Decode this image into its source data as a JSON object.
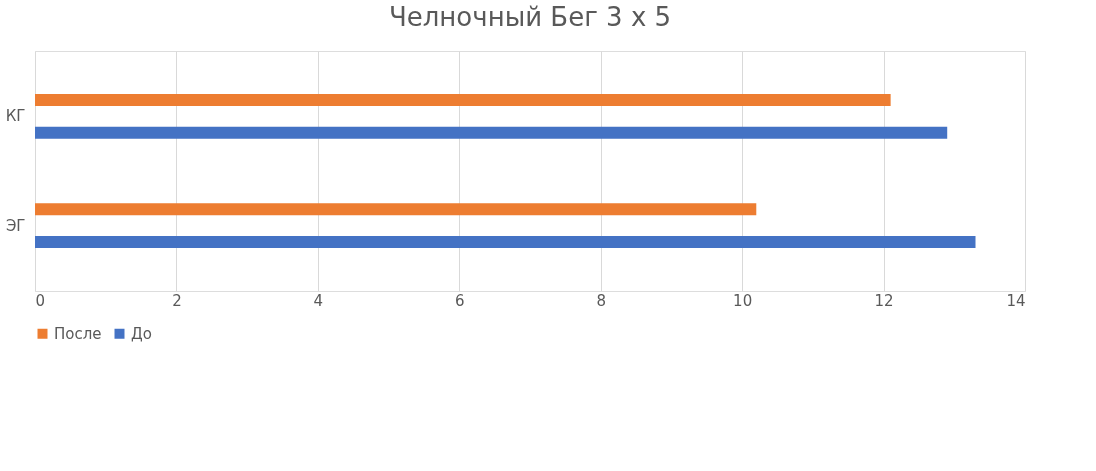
{
  "chart_data": {
    "type": "bar",
    "orientation": "horizontal",
    "title": "Челночный Бег 3 х 5",
    "categories": [
      "КГ",
      "ЭГ"
    ],
    "series": [
      {
        "name": "После",
        "color": "#ed7d31",
        "values": [
          12.1,
          10.2
        ]
      },
      {
        "name": "До",
        "color": "#4472c4",
        "values": [
          12.9,
          13.3
        ]
      }
    ],
    "xlim": [
      0,
      14
    ],
    "xticks": [
      0,
      2,
      4,
      6,
      8,
      10,
      12,
      14
    ],
    "grid": "x",
    "legend": "bottom"
  }
}
